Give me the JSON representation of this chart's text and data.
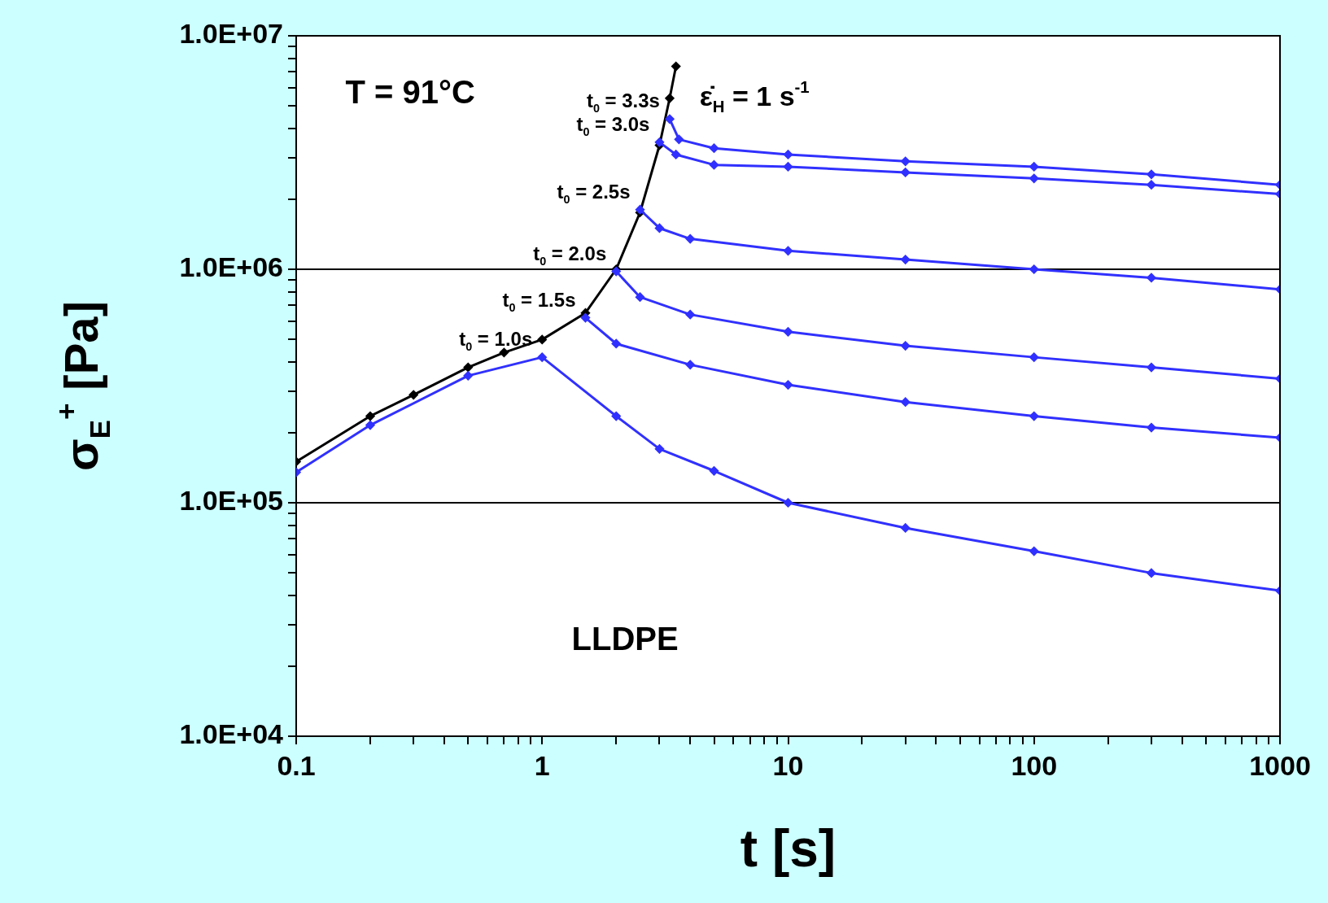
{
  "chart_data": {
    "type": "line",
    "marker": "diamond",
    "log": "xy",
    "grid": "y",
    "xlabel": "t [s]",
    "ylabel": "σ$_{E}$$^{+}$ [Pa]",
    "xlim": [
      0.1,
      1000
    ],
    "ylim": [
      10000,
      10000000
    ],
    "xticks": [
      0.1,
      {
        "value": 0.2,
        "label": null
      },
      {
        "value": 0.3,
        "label": null
      },
      {
        "value": 0.4,
        "label": null
      },
      {
        "value": 0.5,
        "label": null
      },
      {
        "value": 0.6,
        "label": null
      },
      {
        "value": 0.7,
        "label": null
      },
      {
        "value": 0.8,
        "label": null
      },
      {
        "value": 0.9,
        "label": null
      },
      1,
      {
        "value": 2,
        "label": null
      },
      {
        "value": 3,
        "label": null
      },
      {
        "value": 4,
        "label": null
      },
      {
        "value": 5,
        "label": null
      },
      {
        "value": 6,
        "label": null
      },
      {
        "value": 7,
        "label": null
      },
      {
        "value": 8,
        "label": null
      },
      {
        "value": 9,
        "label": null
      },
      10,
      {
        "value": 20,
        "label": null
      },
      {
        "value": 30,
        "label": null
      },
      {
        "value": 40,
        "label": null
      },
      {
        "value": 50,
        "label": null
      },
      {
        "value": 60,
        "label": null
      },
      {
        "value": 70,
        "label": null
      },
      {
        "value": 80,
        "label": null
      },
      {
        "value": 90,
        "label": null
      },
      100,
      {
        "value": 200,
        "label": null
      },
      {
        "value": 300,
        "label": null
      },
      {
        "value": 400,
        "label": null
      },
      {
        "value": 500,
        "label": null
      },
      {
        "value": 600,
        "label": null
      },
      {
        "value": 700,
        "label": null
      },
      {
        "value": 800,
        "label": null
      },
      {
        "value": 900,
        "label": null
      },
      1000
    ],
    "yticks": [
      {
        "value": 10000,
        "label": "1.0E+04"
      },
      {
        "value": 20000,
        "label": null
      },
      {
        "value": 30000,
        "label": null
      },
      {
        "value": 40000,
        "label": null
      },
      {
        "value": 50000,
        "label": null
      },
      {
        "value": 60000,
        "label": null
      },
      {
        "value": 70000,
        "label": null
      },
      {
        "value": 80000,
        "label": null
      },
      {
        "value": 90000,
        "label": null
      },
      {
        "value": 100000,
        "label": "1.0E+05"
      },
      {
        "value": 200000,
        "label": null
      },
      {
        "value": 300000,
        "label": null
      },
      {
        "value": 400000,
        "label": null
      },
      {
        "value": 500000,
        "label": null
      },
      {
        "value": 600000,
        "label": null
      },
      {
        "value": 700000,
        "label": null
      },
      {
        "value": 800000,
        "label": null
      },
      {
        "value": 900000,
        "label": null
      },
      {
        "value": 1000000,
        "label": "1.0E+06"
      },
      {
        "value": 2000000,
        "label": null
      },
      {
        "value": 3000000,
        "label": null
      },
      {
        "value": 4000000,
        "label": null
      },
      {
        "value": 5000000,
        "label": null
      },
      {
        "value": 6000000,
        "label": null
      },
      {
        "value": 7000000,
        "label": null
      },
      {
        "value": 8000000,
        "label": null
      },
      {
        "value": 9000000,
        "label": null
      },
      {
        "value": 10000000,
        "label": "1.0E+07"
      }
    ],
    "series": [
      {
        "color": "#3030ff",
        "x": [
          0.1,
          0.2,
          0.5,
          1,
          2,
          3,
          5,
          10,
          30,
          100,
          300,
          1000
        ],
        "values": [
          135000,
          215000,
          350000,
          420000,
          235000,
          170000,
          137000,
          100000,
          78000,
          62000,
          50000,
          42000
        ]
      },
      {
        "color": "#3030ff",
        "x": [
          1.5,
          2,
          4,
          10,
          30,
          100,
          300,
          1000
        ],
        "values": [
          620000,
          480000,
          390000,
          320000,
          270000,
          235000,
          210000,
          190000
        ]
      },
      {
        "color": "#3030ff",
        "x": [
          2,
          2.5,
          4,
          10,
          30,
          100,
          300,
          1000
        ],
        "values": [
          980000,
          760000,
          640000,
          540000,
          470000,
          420000,
          380000,
          340000
        ]
      },
      {
        "color": "#3030ff",
        "x": [
          2.5,
          3,
          4,
          10,
          30,
          100,
          300,
          1000
        ],
        "values": [
          1800000,
          1500000,
          1350000,
          1200000,
          1100000,
          1000000,
          920000,
          820000
        ]
      },
      {
        "color": "#3030ff",
        "x": [
          3,
          3.5,
          5,
          10,
          30,
          100,
          300,
          1000
        ],
        "values": [
          3500000,
          3100000,
          2800000,
          2750000,
          2600000,
          2450000,
          2300000,
          2100000
        ]
      },
      {
        "color": "#3030ff",
        "x": [
          3.3,
          3.6,
          5,
          10,
          30,
          100,
          300,
          1000
        ],
        "values": [
          4400000,
          3600000,
          3300000,
          3100000,
          2900000,
          2750000,
          2550000,
          2300000
        ]
      },
      {
        "color": "#000000",
        "x": [
          0.1,
          0.2,
          0.3,
          0.5,
          0.7,
          1,
          1.5,
          2,
          2.5,
          3,
          3.3,
          3.5
        ],
        "values": [
          150000,
          235000,
          290000,
          380000,
          440000,
          500000,
          650000,
          1000000,
          1750000,
          3400000,
          5400000,
          7400000
        ]
      }
    ],
    "annotations": [
      "T = 91°C",
      "ε̇$_{H}$ = 1 s$^{-1}$",
      "LLDPE",
      {
        "text": "t$_{0}$ = 1.0s",
        "x": 1,
        "y": 420000
      },
      {
        "text": "t$_{0}$ = 1.5s",
        "x": 1.5,
        "y": 620000
      },
      {
        "text": "t$_{0}$ = 2.0s",
        "x": 2,
        "y": 980000
      },
      {
        "text": "t$_{0}$ = 2.5s",
        "x": 2.5,
        "y": 1800000
      },
      {
        "text": "t$_{0}$ = 3.0s",
        "x": 3,
        "y": 3500000
      },
      {
        "text": "t$_{0}$ = 3.3s",
        "x": 3.3,
        "y": 4400000
      }
    ]
  }
}
